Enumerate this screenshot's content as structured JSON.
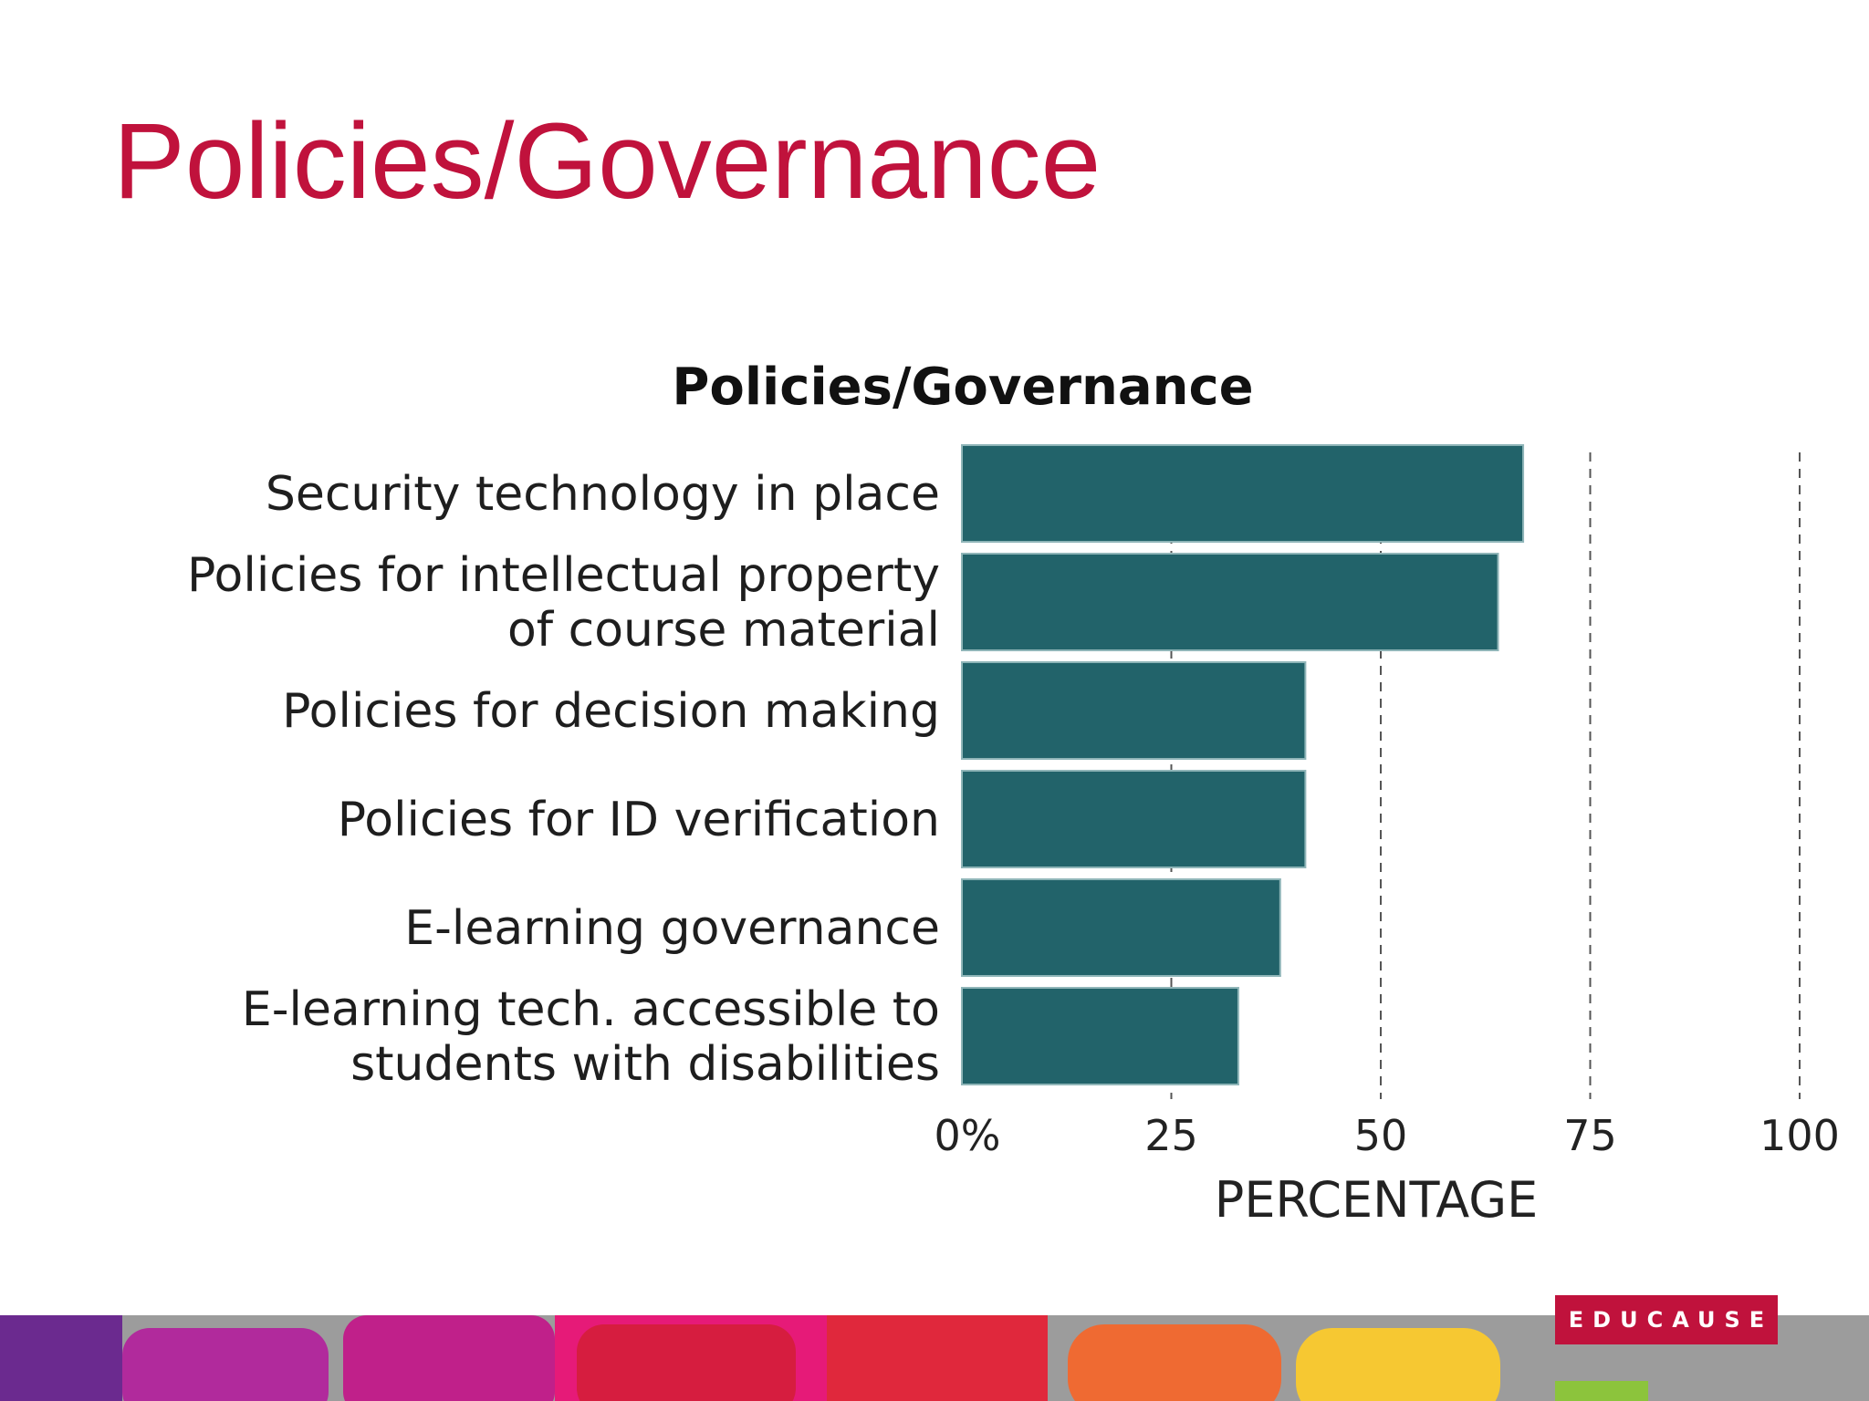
{
  "slide": {
    "title": "Policies/Governance"
  },
  "colors": {
    "title": "#c0123c",
    "bar": "#22636a",
    "logo_bg": "#c0123c"
  },
  "logo": {
    "text": "EDUCAUSE"
  },
  "chart_data": {
    "type": "bar",
    "orientation": "horizontal",
    "title": "Policies/Governance",
    "xlabel": "PERCENTAGE",
    "ylabel": "",
    "xlim": [
      0,
      100
    ],
    "ticks": [
      0,
      25,
      50,
      75,
      100
    ],
    "tick_labels": [
      "0%",
      "25",
      "50",
      "75",
      "100"
    ],
    "grid": "vertical dashed",
    "categories": [
      [
        "Security technology in place"
      ],
      [
        "Policies for intellectual property",
        "of course material"
      ],
      [
        "Policies for decision making"
      ],
      [
        "Policies for ID verification"
      ],
      [
        "E-learning governance"
      ],
      [
        "E-learning tech. accessible to",
        "students with disabilities"
      ]
    ],
    "values": [
      67,
      64,
      41,
      41,
      38,
      33
    ]
  }
}
